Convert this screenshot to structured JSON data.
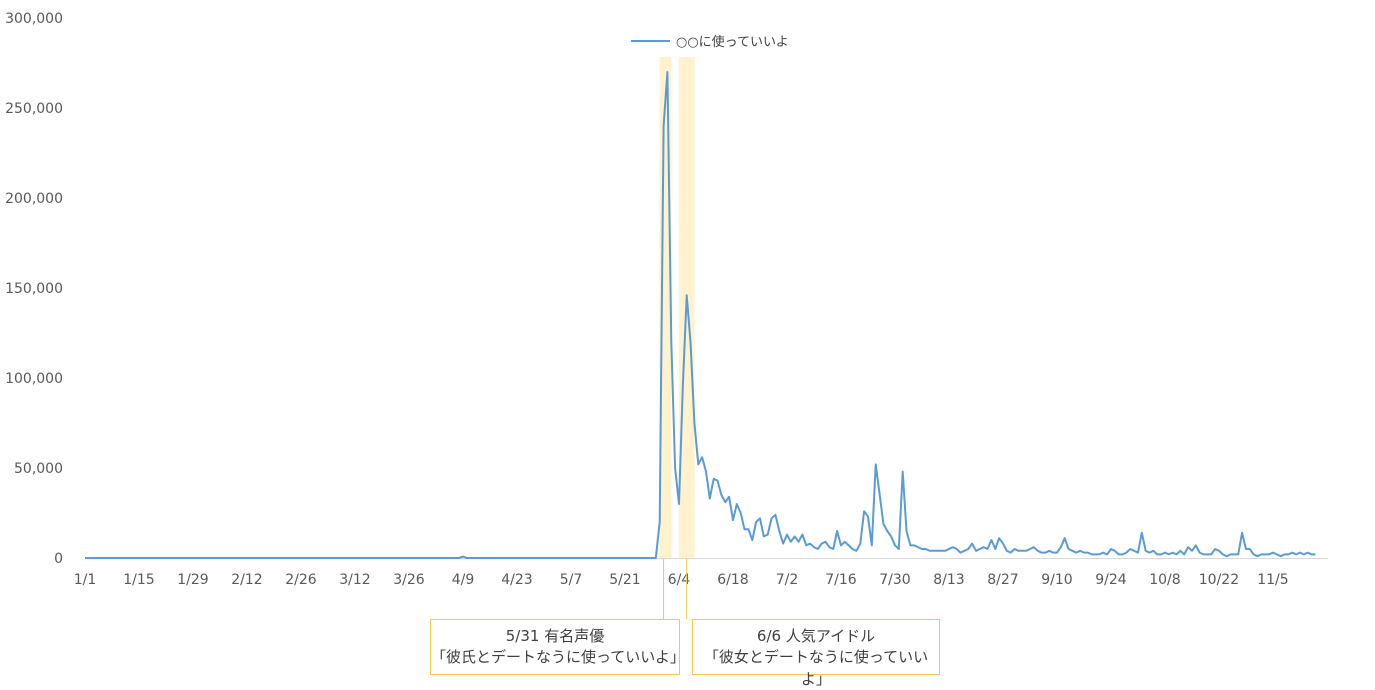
{
  "chart_data": {
    "type": "line",
    "legend": {
      "label": "○○に使っていいよ",
      "position": "top-center"
    },
    "colors": {
      "line": "#5b9bd5",
      "highlight": "#fff2cc",
      "annotation_border": "#f2c94c",
      "axis_text": "#595959"
    },
    "ylim": [
      0,
      300000
    ],
    "y_ticks": [
      "0",
      "50,000",
      "100,000",
      "150,000",
      "200,000",
      "250,000",
      "300,000"
    ],
    "x_ticks": [
      "1/1",
      "1/15",
      "1/29",
      "2/12",
      "2/26",
      "3/12",
      "3/26",
      "4/9",
      "4/23",
      "5/7",
      "5/21",
      "6/4",
      "6/18",
      "7/2",
      "7/16",
      "7/30",
      "8/13",
      "8/27",
      "9/10",
      "9/24",
      "10/8",
      "10/22",
      "11/5"
    ],
    "series": [
      {
        "name": "○○に使っていいよ",
        "points": [
          [
            "1/1",
            0
          ],
          [
            "4/8",
            0
          ],
          [
            "4/9",
            800
          ],
          [
            "4/10",
            0
          ],
          [
            "5/29",
            0
          ],
          [
            "5/30",
            20000
          ],
          [
            "5/31",
            240000
          ],
          [
            "6/1",
            270000
          ],
          [
            "6/2",
            120000
          ],
          [
            "6/3",
            50000
          ],
          [
            "6/4",
            30000
          ],
          [
            "6/5",
            95000
          ],
          [
            "6/6",
            146000
          ],
          [
            "6/7",
            120000
          ],
          [
            "6/8",
            75000
          ],
          [
            "6/9",
            52000
          ],
          [
            "6/10",
            56000
          ],
          [
            "6/11",
            48000
          ],
          [
            "6/12",
            33000
          ],
          [
            "6/13",
            44000
          ],
          [
            "6/14",
            43000
          ],
          [
            "6/15",
            35000
          ],
          [
            "6/16",
            31000
          ],
          [
            "6/17",
            34000
          ],
          [
            "6/18",
            21000
          ],
          [
            "6/19",
            30000
          ],
          [
            "6/20",
            25000
          ],
          [
            "6/21",
            16000
          ],
          [
            "6/22",
            16000
          ],
          [
            "6/23",
            10000
          ],
          [
            "6/24",
            20000
          ],
          [
            "6/25",
            22000
          ],
          [
            "6/26",
            12000
          ],
          [
            "6/27",
            13000
          ],
          [
            "6/28",
            22000
          ],
          [
            "6/29",
            24000
          ],
          [
            "6/30",
            15000
          ],
          [
            "7/1",
            8000
          ],
          [
            "7/2",
            13000
          ],
          [
            "7/3",
            9000
          ],
          [
            "7/4",
            12000
          ],
          [
            "7/5",
            9000
          ],
          [
            "7/6",
            13000
          ],
          [
            "7/7",
            7000
          ],
          [
            "7/8",
            8000
          ],
          [
            "7/9",
            6000
          ],
          [
            "7/10",
            5000
          ],
          [
            "7/11",
            8000
          ],
          [
            "7/12",
            9000
          ],
          [
            "7/13",
            6000
          ],
          [
            "7/14",
            5000
          ],
          [
            "7/15",
            15000
          ],
          [
            "7/16",
            7000
          ],
          [
            "7/17",
            9000
          ],
          [
            "7/18",
            7000
          ],
          [
            "7/19",
            5000
          ],
          [
            "7/20",
            4000
          ],
          [
            "7/21",
            8000
          ],
          [
            "7/22",
            26000
          ],
          [
            "7/23",
            23000
          ],
          [
            "7/24",
            7000
          ],
          [
            "7/25",
            52000
          ],
          [
            "7/26",
            36000
          ],
          [
            "7/27",
            19000
          ],
          [
            "7/28",
            15000
          ],
          [
            "7/29",
            12000
          ],
          [
            "7/30",
            7000
          ],
          [
            "7/31",
            5000
          ],
          [
            "8/1",
            48000
          ],
          [
            "8/2",
            15000
          ],
          [
            "8/3",
            7000
          ],
          [
            "8/4",
            7000
          ],
          [
            "8/5",
            6000
          ],
          [
            "8/6",
            5000
          ],
          [
            "8/7",
            5000
          ],
          [
            "8/8",
            4000
          ],
          [
            "8/9",
            4000
          ],
          [
            "8/10",
            4000
          ],
          [
            "8/11",
            4000
          ],
          [
            "8/12",
            4000
          ],
          [
            "8/13",
            5000
          ],
          [
            "8/14",
            6000
          ],
          [
            "8/15",
            5000
          ],
          [
            "8/16",
            3000
          ],
          [
            "8/17",
            4000
          ],
          [
            "8/18",
            5000
          ],
          [
            "8/19",
            8000
          ],
          [
            "8/20",
            4000
          ],
          [
            "8/21",
            5000
          ],
          [
            "8/22",
            6000
          ],
          [
            "8/23",
            5000
          ],
          [
            "8/24",
            10000
          ],
          [
            "8/25",
            5000
          ],
          [
            "8/26",
            11000
          ],
          [
            "8/27",
            8000
          ],
          [
            "8/28",
            4000
          ],
          [
            "8/29",
            3000
          ],
          [
            "8/30",
            5000
          ],
          [
            "8/31",
            4000
          ],
          [
            "9/1",
            4000
          ],
          [
            "9/2",
            4000
          ],
          [
            "9/3",
            5000
          ],
          [
            "9/4",
            6000
          ],
          [
            "9/5",
            4000
          ],
          [
            "9/6",
            3000
          ],
          [
            "9/7",
            3000
          ],
          [
            "9/8",
            4000
          ],
          [
            "9/9",
            3000
          ],
          [
            "9/10",
            3000
          ],
          [
            "9/11",
            6000
          ],
          [
            "9/12",
            11000
          ],
          [
            "9/13",
            5000
          ],
          [
            "9/14",
            4000
          ],
          [
            "9/15",
            3000
          ],
          [
            "9/16",
            4000
          ],
          [
            "9/17",
            3000
          ],
          [
            "9/18",
            3000
          ],
          [
            "9/19",
            2000
          ],
          [
            "9/20",
            2000
          ],
          [
            "9/21",
            2000
          ],
          [
            "9/22",
            3000
          ],
          [
            "9/23",
            2000
          ],
          [
            "9/24",
            5000
          ],
          [
            "9/25",
            4000
          ],
          [
            "9/26",
            2000
          ],
          [
            "9/27",
            2000
          ],
          [
            "9/28",
            3000
          ],
          [
            "9/29",
            5000
          ],
          [
            "9/30",
            4000
          ],
          [
            "10/1",
            3000
          ],
          [
            "10/2",
            14000
          ],
          [
            "10/3",
            4000
          ],
          [
            "10/4",
            3000
          ],
          [
            "10/5",
            4000
          ],
          [
            "10/6",
            2000
          ],
          [
            "10/7",
            2000
          ],
          [
            "10/8",
            3000
          ],
          [
            "10/9",
            2000
          ],
          [
            "10/10",
            3000
          ],
          [
            "10/11",
            2000
          ],
          [
            "10/12",
            4000
          ],
          [
            "10/13",
            2000
          ],
          [
            "10/14",
            6000
          ],
          [
            "10/15",
            4000
          ],
          [
            "10/16",
            7000
          ],
          [
            "10/17",
            3000
          ],
          [
            "10/18",
            2000
          ],
          [
            "10/19",
            2000
          ],
          [
            "10/20",
            2000
          ],
          [
            "10/21",
            5000
          ],
          [
            "10/22",
            4000
          ],
          [
            "10/23",
            2000
          ],
          [
            "10/24",
            1000
          ],
          [
            "10/25",
            2000
          ],
          [
            "10/26",
            2000
          ],
          [
            "10/27",
            2000
          ],
          [
            "10/28",
            14000
          ],
          [
            "10/29",
            5000
          ],
          [
            "10/30",
            5000
          ],
          [
            "10/31",
            2000
          ],
          [
            "11/1",
            1000
          ],
          [
            "11/2",
            2000
          ],
          [
            "11/3",
            2000
          ],
          [
            "11/4",
            2000
          ],
          [
            "11/5",
            3000
          ],
          [
            "11/6",
            2000
          ],
          [
            "11/7",
            1000
          ],
          [
            "11/8",
            2000
          ],
          [
            "11/9",
            2000
          ],
          [
            "11/10",
            3000
          ],
          [
            "11/11",
            2000
          ],
          [
            "11/12",
            3000
          ],
          [
            "11/13",
            2000
          ],
          [
            "11/14",
            3000
          ],
          [
            "11/15",
            2000
          ],
          [
            "11/16",
            2000
          ]
        ]
      }
    ],
    "highlights": [
      {
        "from": "5/31",
        "to": "6/1"
      },
      {
        "from": "6/5",
        "to": "6/7"
      }
    ]
  },
  "annotations": [
    {
      "date": "5/31",
      "line1": "5/31  有名声優",
      "line2": "「彼氏とデートなうに使っていいよ」"
    },
    {
      "date": "6/6",
      "line1": "6/6  人気アイドル",
      "line2": "「彼女とデートなうに使っていいよ」"
    }
  ]
}
